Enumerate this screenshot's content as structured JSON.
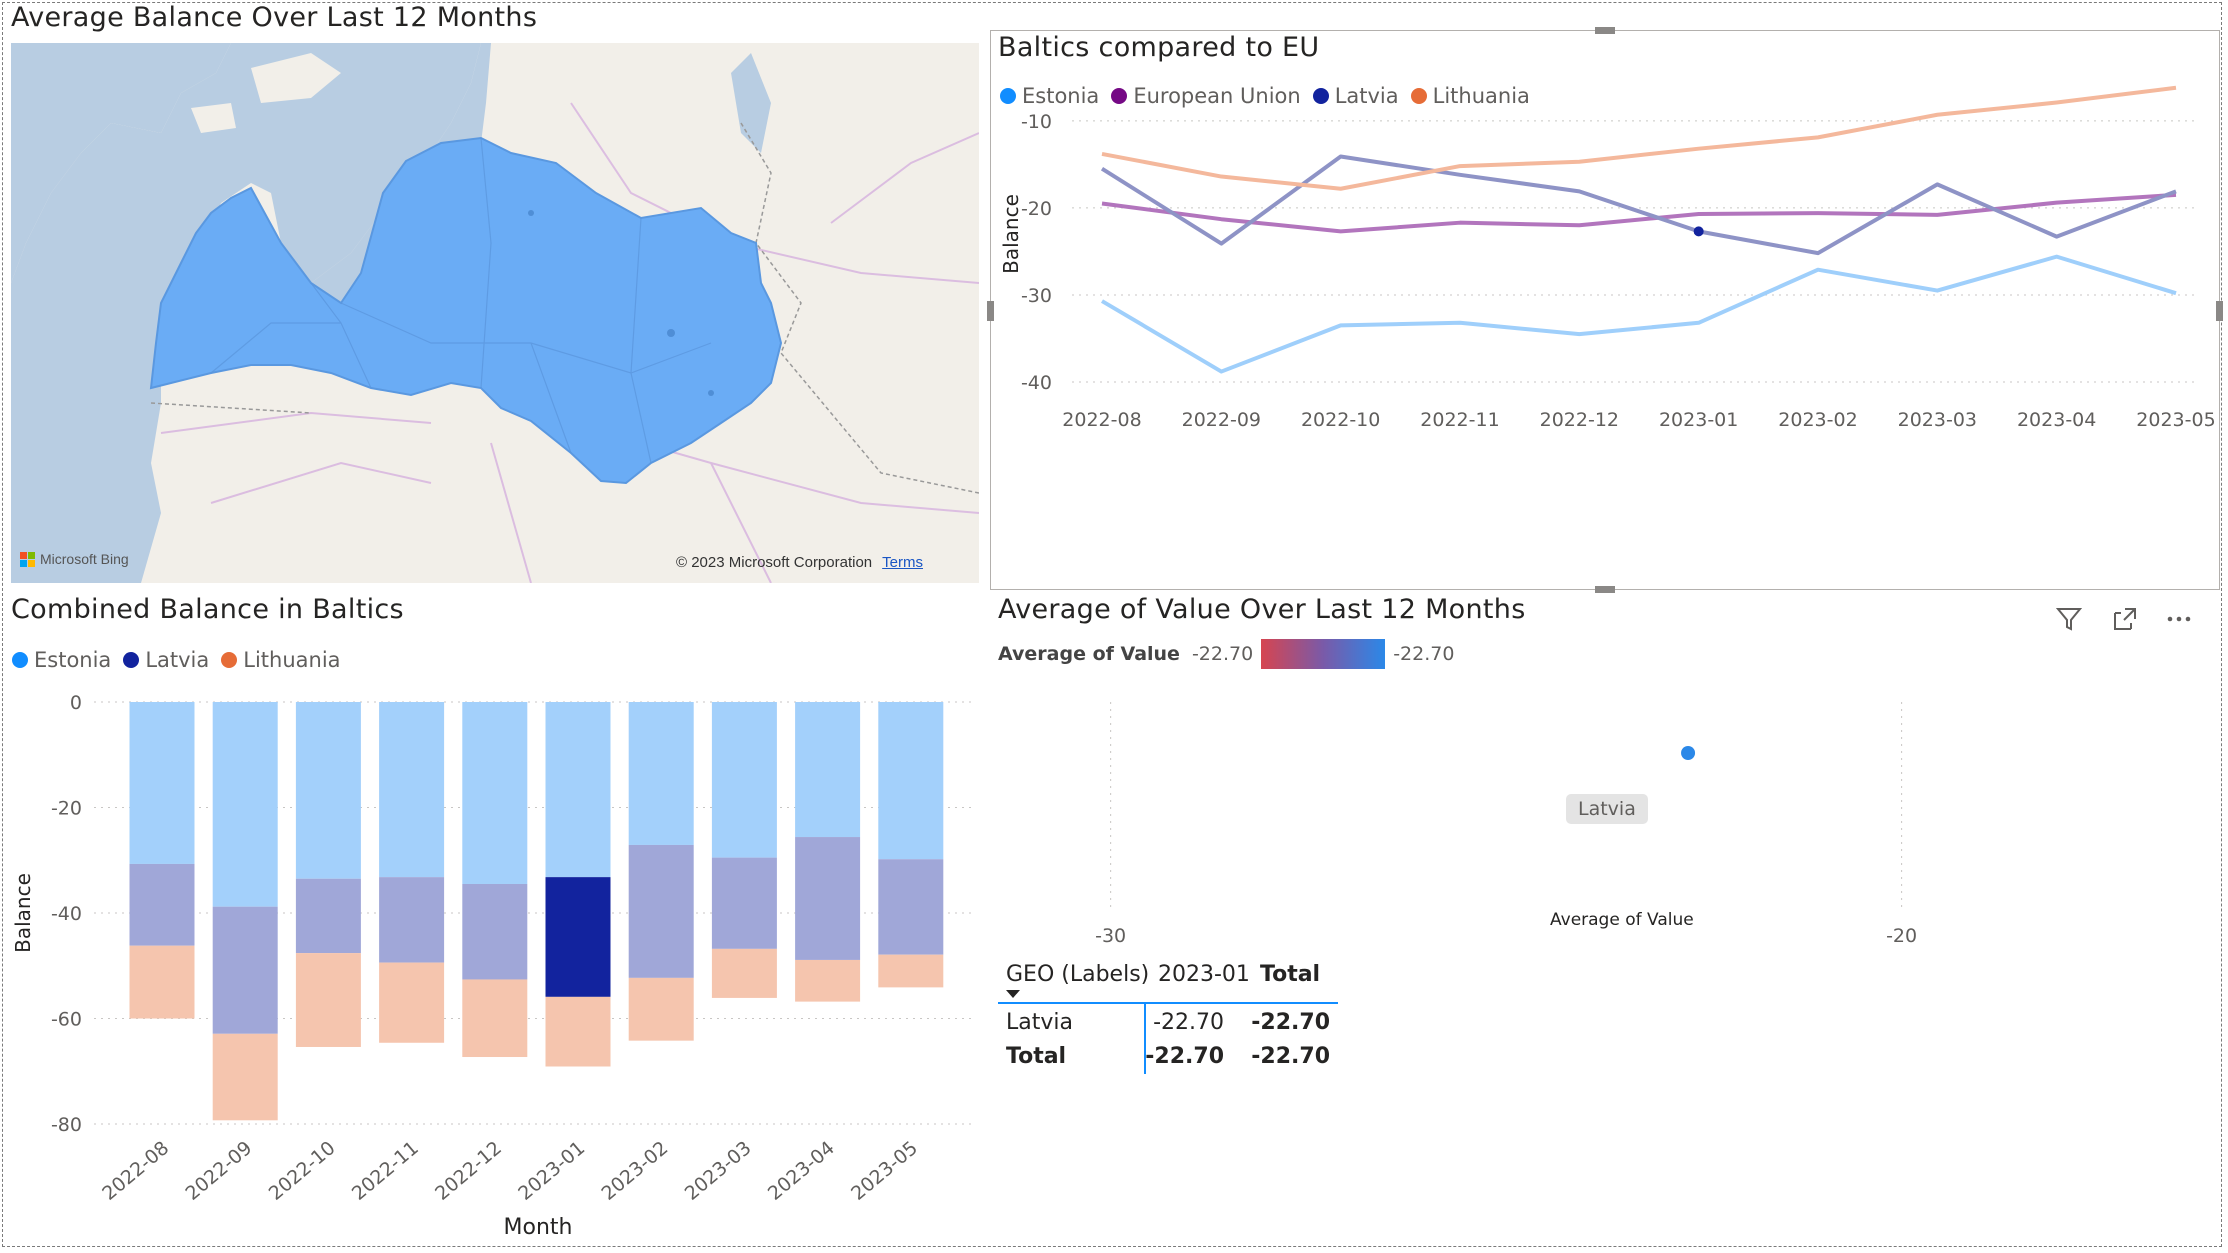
{
  "map": {
    "title": "Average Balance Over Last 12 Months",
    "attribution": "© 2023 Microsoft Corporation",
    "terms_link": "Terms",
    "provider": "Microsoft Bing"
  },
  "line_visual": {
    "title": "Baltics compared to EU",
    "legend": [
      {
        "name": "Estonia",
        "color": "#118DFF"
      },
      {
        "name": "European Union",
        "color": "#750985"
      },
      {
        "name": "Latvia",
        "color": "#12239E"
      },
      {
        "name": "Lithuania",
        "color": "#E66C37"
      }
    ],
    "ylabel": "Balance"
  },
  "bar_visual": {
    "title": "Combined Balance in Baltics",
    "legend": [
      {
        "name": "Estonia",
        "color": "#118DFF"
      },
      {
        "name": "Latvia",
        "color": "#12239E"
      },
      {
        "name": "Lithuania",
        "color": "#E66C37"
      }
    ],
    "ylabel": "Balance",
    "xlabel": "Month"
  },
  "scatter_visual": {
    "title": "Average of Value Over Last 12 Months",
    "gradient_label": "Average of Value",
    "gradient_min": "-22.70",
    "gradient_max": "-22.70",
    "point_label": "Latvia",
    "xlabel": "Average of Value",
    "filter_icon": "filter-icon",
    "focus_icon": "focus-mode-icon",
    "more_icon": "more-options-icon"
  },
  "matrix": {
    "headers": [
      "GEO (Labels)",
      "2023-01",
      "Total"
    ],
    "rows": [
      {
        "label": "Latvia",
        "v1": "-22.70",
        "total": "-22.70"
      },
      {
        "label": "Total",
        "v1": "-22.70",
        "total": "-22.70"
      }
    ]
  },
  "chart_data": [
    {
      "type": "line",
      "title": "Baltics compared to EU",
      "ylabel": "Balance",
      "xlabel": "",
      "ylim": [
        -40,
        -6
      ],
      "yticks": [
        -10,
        -20,
        -30,
        -40
      ],
      "categories": [
        "2022-08",
        "2022-09",
        "2022-10",
        "2022-11",
        "2022-12",
        "2023-01",
        "2023-02",
        "2023-03",
        "2023-04",
        "2023-05"
      ],
      "series": [
        {
          "name": "Estonia",
          "color": "#118DFF",
          "values": [
            -30.7,
            -38.8,
            -33.5,
            -33.2,
            -34.5,
            -33.2,
            -27.1,
            -29.5,
            -25.6,
            -29.8
          ]
        },
        {
          "name": "European Union",
          "color": "#750985",
          "values": [
            -19.5,
            -21.3,
            -22.7,
            -21.7,
            -22.0,
            -20.7,
            -20.6,
            -20.8,
            -19.4,
            -18.5
          ]
        },
        {
          "name": "Latvia",
          "color": "#12239E",
          "values": [
            -15.5,
            -24.1,
            -14.1,
            -16.2,
            -18.1,
            -22.7,
            -25.2,
            -17.3,
            -23.3,
            -18.1
          ]
        },
        {
          "name": "Lithuania",
          "color": "#E66C37",
          "values": [
            -13.8,
            -16.4,
            -17.8,
            -15.2,
            -14.7,
            -13.2,
            -11.9,
            -9.3,
            -7.9,
            -6.2
          ]
        }
      ],
      "grid": true,
      "legend": "top-left"
    },
    {
      "type": "bar",
      "title": "Combined Balance in Baltics",
      "ylabel": "Balance",
      "xlabel": "Month",
      "ylim": [
        -80,
        0
      ],
      "yticks": [
        0,
        -20,
        -40,
        -60,
        -80
      ],
      "categories": [
        "2022-08",
        "2022-09",
        "2022-10",
        "2022-11",
        "2022-12",
        "2023-01",
        "2023-02",
        "2023-03",
        "2023-04",
        "2023-05"
      ],
      "series": [
        {
          "name": "Estonia",
          "color": "#118DFF",
          "values": [
            -30.7,
            -38.8,
            -33.5,
            -33.2,
            -34.5,
            -33.2,
            -27.1,
            -29.5,
            -25.6,
            -29.8
          ]
        },
        {
          "name": "Latvia",
          "color": "#12239E",
          "values": [
            -15.5,
            -24.1,
            -14.1,
            -16.2,
            -18.1,
            -22.7,
            -25.2,
            -17.3,
            -23.3,
            -18.1
          ]
        },
        {
          "name": "Lithuania",
          "color": "#E66C37",
          "values": [
            -13.8,
            -16.4,
            -17.8,
            -15.2,
            -14.7,
            -13.2,
            -11.9,
            -9.3,
            -7.9,
            -6.2
          ]
        }
      ],
      "stacked": true,
      "highlighted": "2023-01",
      "legend": "top-left"
    },
    {
      "type": "scatter",
      "title": "Average of Value Over Last 12 Months",
      "xlabel": "Average of Value",
      "xticks": [
        -30,
        -20
      ],
      "xlim": [
        -31.5,
        -16.0
      ],
      "points": [
        {
          "label": "Latvia",
          "x": -22.7
        }
      ]
    }
  ]
}
